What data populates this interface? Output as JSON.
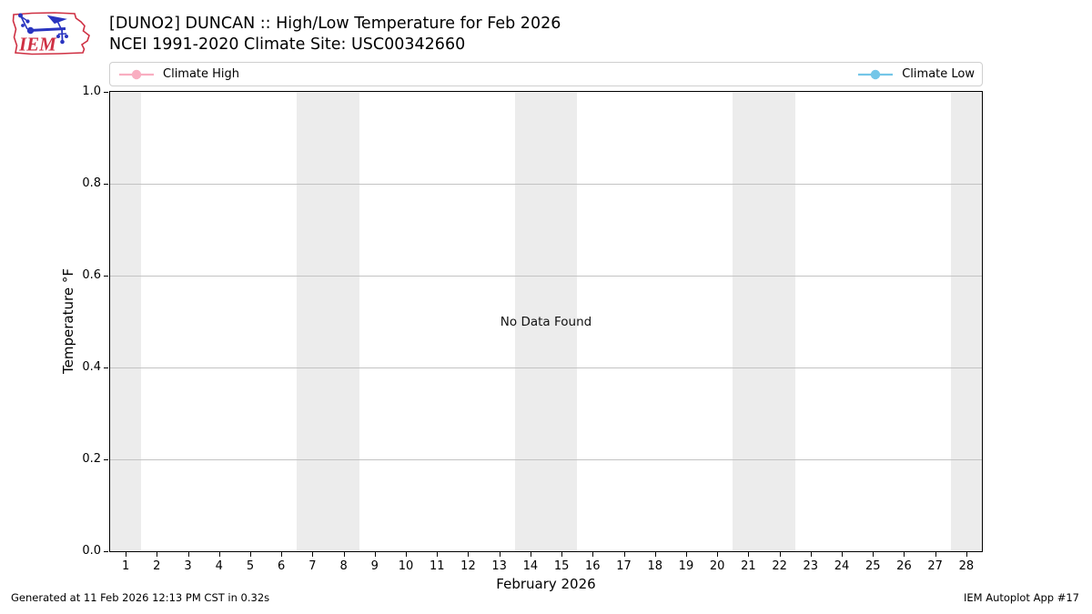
{
  "logo": {
    "text": "IEM"
  },
  "header": {
    "title": "[DUNO2] DUNCAN :: High/Low Temperature for Feb 2026",
    "subtitle": "NCEI 1991-2020 Climate Site: USC00342660"
  },
  "chart_data": {
    "type": "line",
    "title": "[DUNO2] DUNCAN :: High/Low Temperature for Feb 2026",
    "subtitle": "NCEI 1991-2020 Climate Site: USC00342660",
    "xlabel": "February 2026",
    "ylabel": "Temperature °F",
    "xlim": [
      0.5,
      28.5
    ],
    "ylim": [
      0.0,
      1.0
    ],
    "x_ticks": [
      1,
      2,
      3,
      4,
      5,
      6,
      7,
      8,
      9,
      10,
      11,
      12,
      13,
      14,
      15,
      16,
      17,
      18,
      19,
      20,
      21,
      22,
      23,
      24,
      25,
      26,
      27,
      28
    ],
    "y_tick_labels": [
      "0.0",
      "0.2",
      "0.4",
      "0.6",
      "0.8",
      "1.0"
    ],
    "grid": "horizontal",
    "legend_position": "top row spanning plot width",
    "series": [
      {
        "name": "Climate High",
        "color": "#f9aec1",
        "x": [],
        "values": []
      },
      {
        "name": "Climate Low",
        "color": "#74c6e8",
        "x": [],
        "values": []
      }
    ],
    "no_data_message": "No Data Found",
    "weekend_shading_bands_x": [
      [
        0.5,
        1.5
      ],
      [
        6.5,
        8.5
      ],
      [
        13.5,
        15.5
      ],
      [
        20.5,
        22.5
      ],
      [
        27.5,
        28.5
      ]
    ],
    "band_color": "#ececec",
    "grid_color": "#c3c3c3"
  },
  "footer": {
    "left": "Generated at 11 Feb 2026 12:13 PM CST in 0.32s",
    "right": "IEM Autoplot App #17"
  }
}
